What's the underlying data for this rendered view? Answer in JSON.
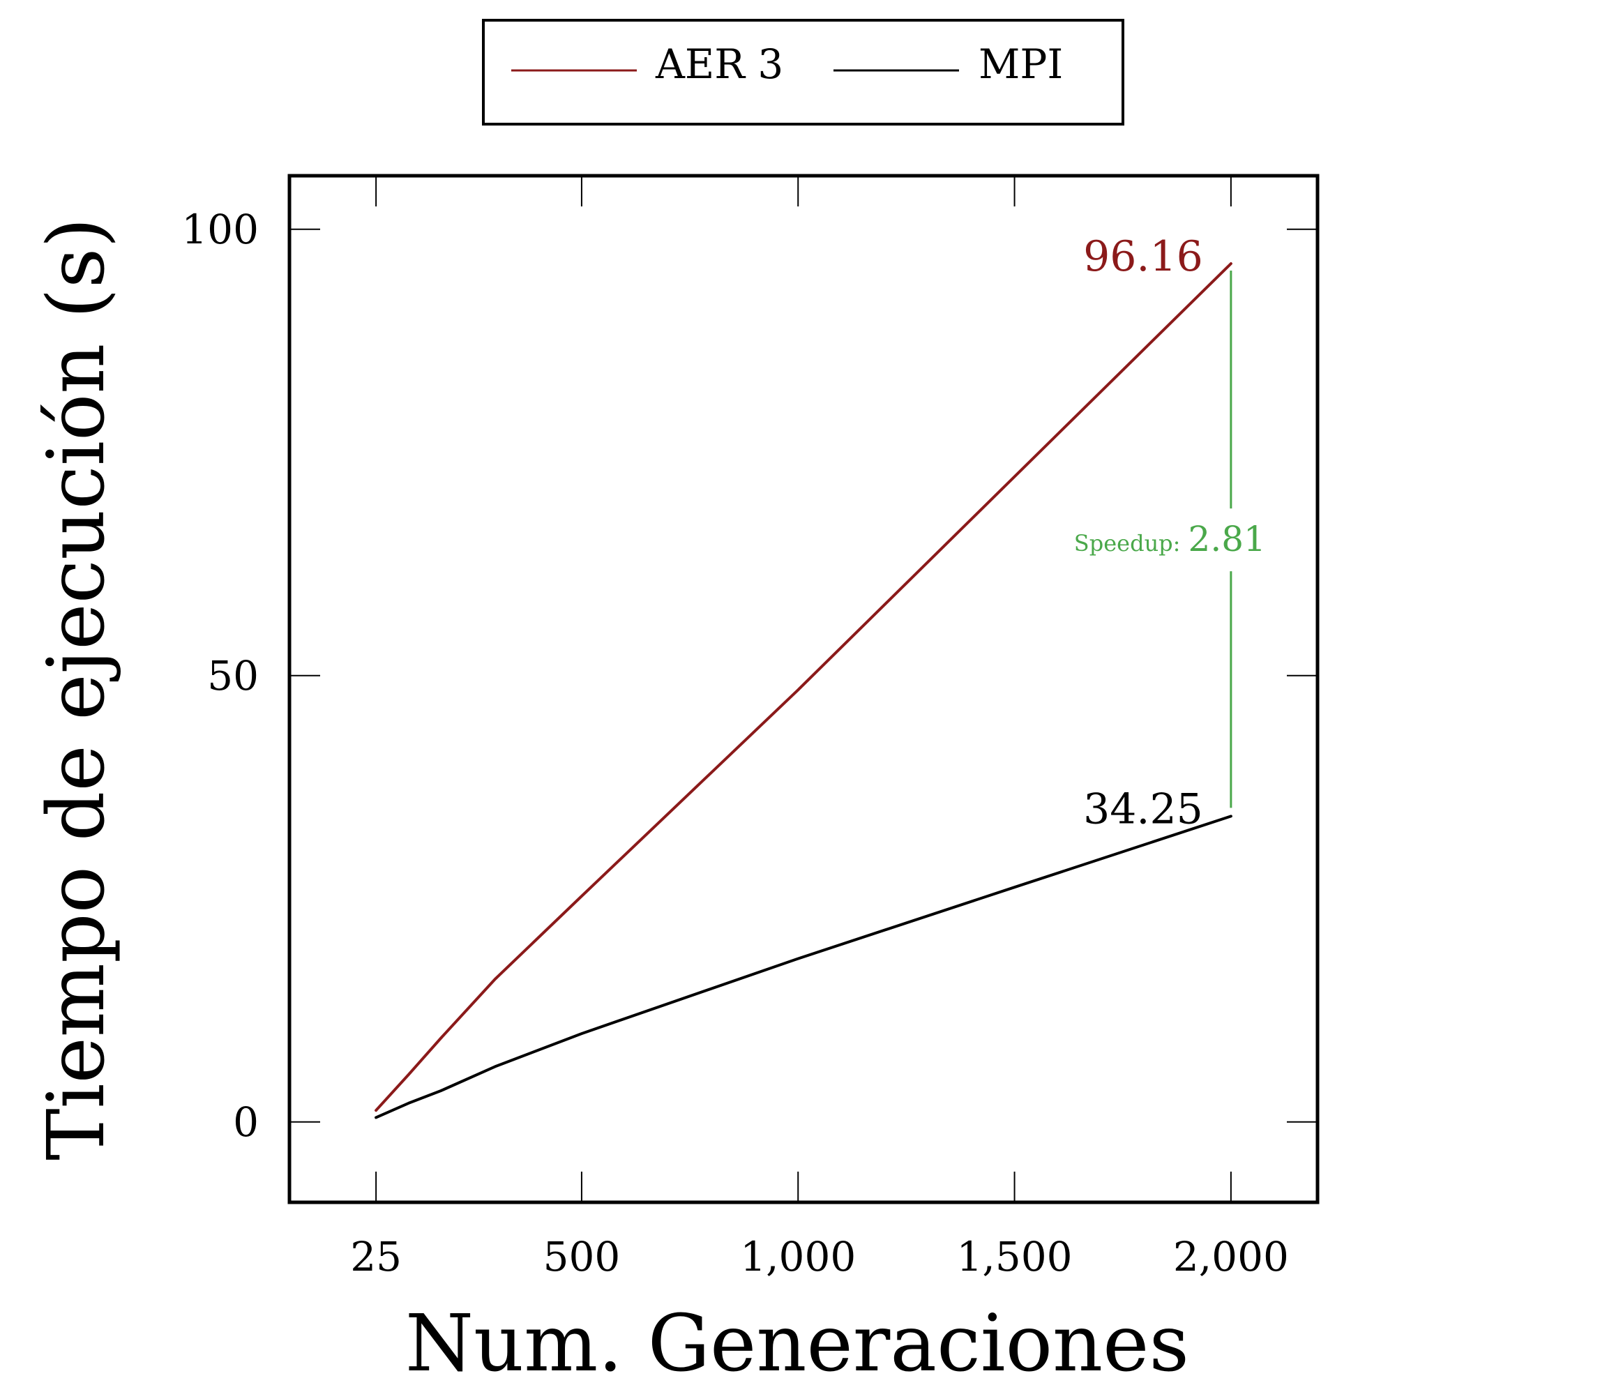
{
  "legend": {
    "items": [
      {
        "label": "AER 3",
        "color": "#8b1a1a"
      },
      {
        "label": "MPI",
        "color": "#000000"
      }
    ]
  },
  "chart_data": {
    "type": "line",
    "xlabel": "Num. Generaciones",
    "ylabel": "Tiempo de ejecución (s)",
    "xlim": [
      -175,
      2200
    ],
    "ylim": [
      -9,
      106
    ],
    "xticks": [
      25,
      500,
      1000,
      1500,
      2000
    ],
    "xtick_labels": [
      "25",
      "500",
      "1,000",
      "1,500",
      "2,000"
    ],
    "yticks": [
      0,
      50,
      100
    ],
    "ytick_labels": [
      "0",
      "50",
      "100"
    ],
    "grid": false,
    "legend_position": "top-center",
    "series": [
      {
        "name": "AER 3",
        "color": "#8b1a1a",
        "x": [
          25,
          100,
          175,
          300,
          500,
          1000,
          1500,
          2000
        ],
        "y": [
          1.3,
          5.3,
          9.4,
          16.0,
          25.3,
          48.4,
          72.3,
          96.16
        ]
      },
      {
        "name": "MPI",
        "color": "#000000",
        "x": [
          25,
          100,
          175,
          300,
          500,
          1000,
          1500,
          2000
        ],
        "y": [
          0.5,
          2.1,
          3.5,
          6.2,
          9.9,
          18.3,
          26.3,
          34.25
        ]
      }
    ],
    "annotations": {
      "aer_end_label": "96.16",
      "mpi_end_label": "34.25",
      "speedup_prefix": "Speedup:",
      "speedup_value": "2.81",
      "speedup_color": "#4aa84a"
    }
  }
}
